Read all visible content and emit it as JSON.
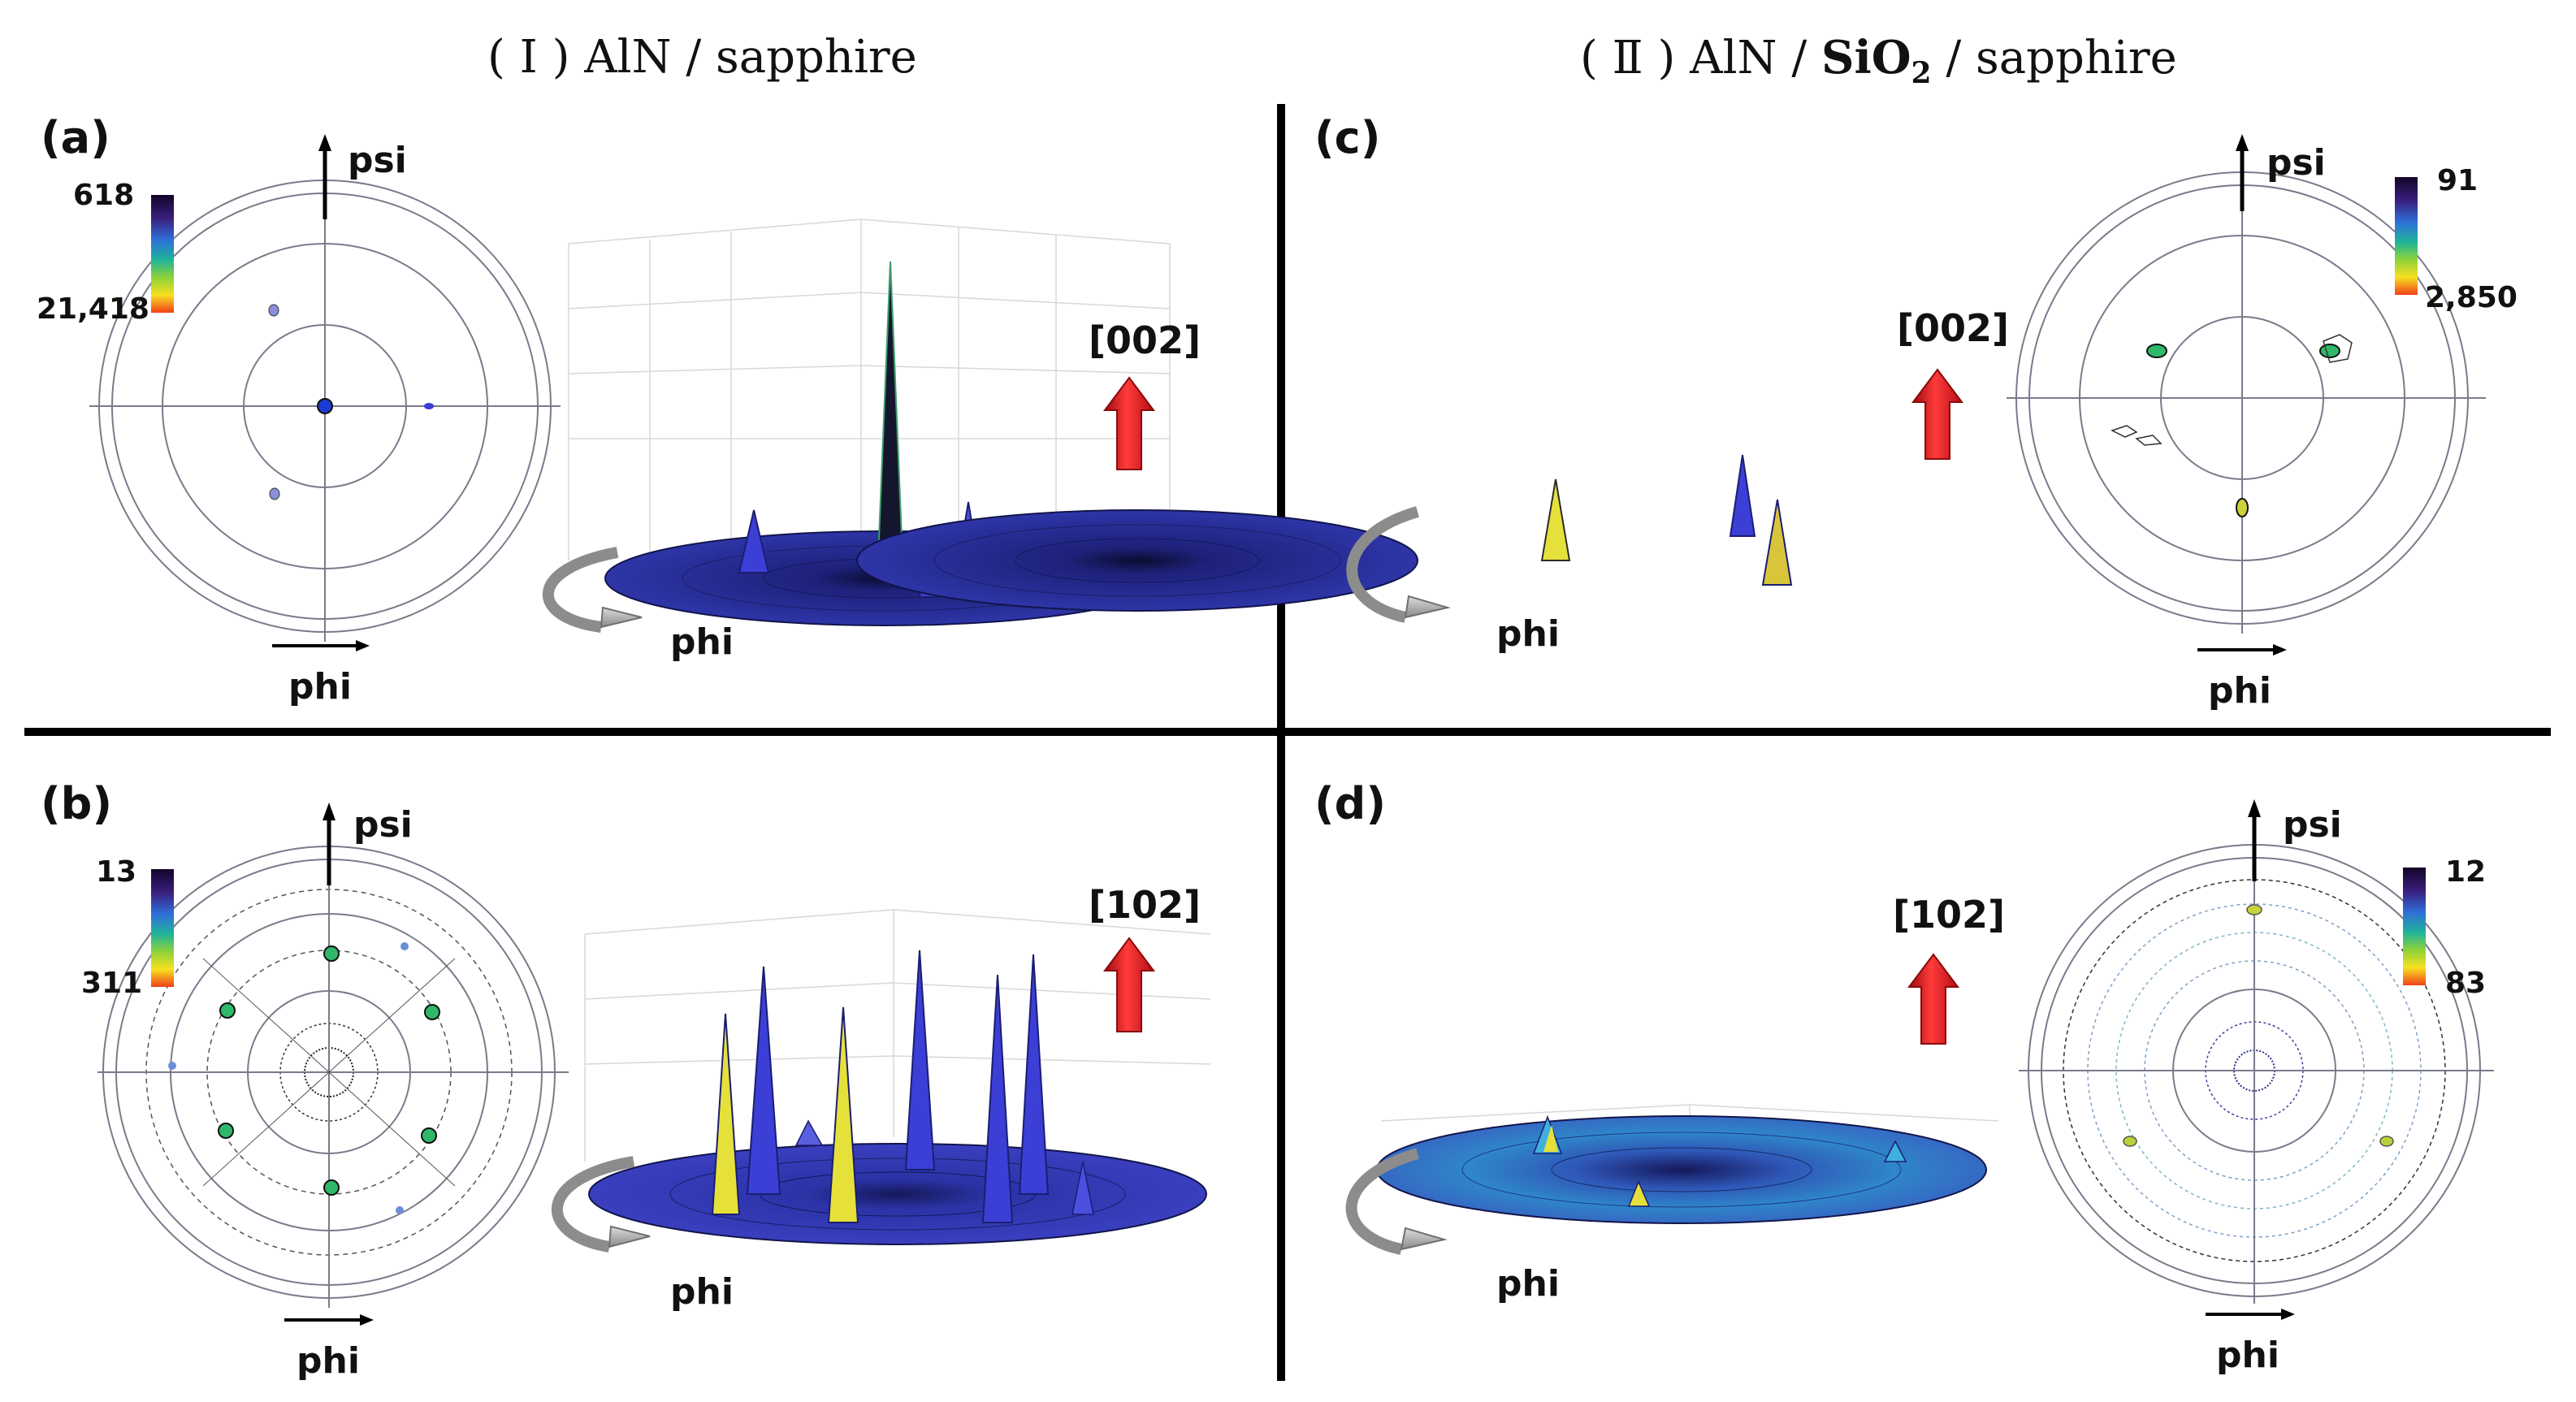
{
  "columns": {
    "left": {
      "numeral": "( Ⅰ )",
      "text": "AlN / sapphire"
    },
    "right": {
      "numeral": "( Ⅱ )",
      "text_a": "AlN / ",
      "text_b": "SiO",
      "sub": "2",
      "text_c": " / sapphire"
    }
  },
  "panels": {
    "a": {
      "label": "(a)",
      "colorbar_max": "618",
      "colorbar_min": "21,418",
      "direction": "[002]"
    },
    "b": {
      "label": "(b)",
      "colorbar_max": "13",
      "colorbar_min": "311",
      "direction": "[102]"
    },
    "c": {
      "label": "(c)",
      "colorbar_max": "91",
      "colorbar_min": "2,850",
      "direction": "[002]"
    },
    "d": {
      "label": "(d)",
      "colorbar_max": "12",
      "colorbar_min": "83",
      "direction": "[102]"
    }
  },
  "axes": {
    "psi": "psi",
    "phi": "phi"
  },
  "colors": {
    "disk": "#2a2f9a",
    "disk_dark": "#0c0f3a",
    "arrow_red": "#e3121b",
    "peak_blue": "#3b3fd6",
    "peak_yellow": "#e6e13a"
  }
}
